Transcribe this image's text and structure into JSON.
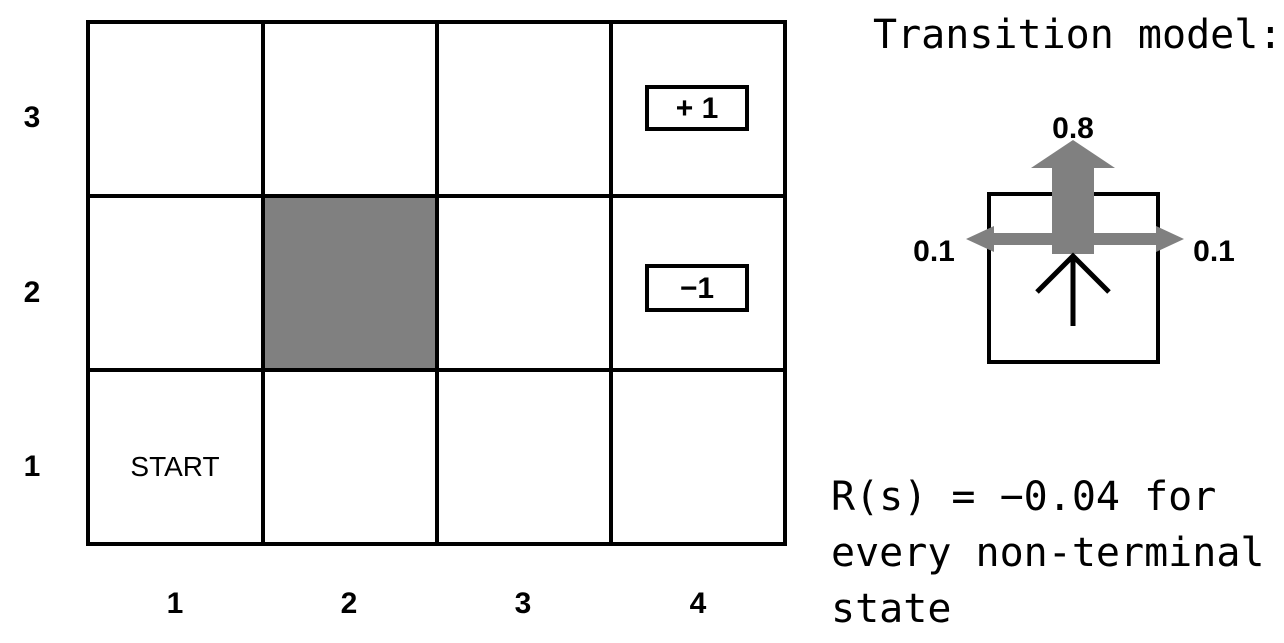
{
  "grid": {
    "columns": 4,
    "rows": 3,
    "col_labels": [
      "1",
      "2",
      "3",
      "4"
    ],
    "row_labels": [
      "3",
      "2",
      "1"
    ],
    "wall_cell": {
      "col": 2,
      "row": 2
    },
    "wall_color": "#808080",
    "start_cell": {
      "col": 1,
      "row": 1,
      "label": "START"
    },
    "terminals": [
      {
        "col": 4,
        "row": 3,
        "label": "+ 1"
      },
      {
        "col": 4,
        "row": 2,
        "label": "−1"
      }
    ]
  },
  "transition": {
    "title": "Transition model:",
    "forward_prob": "0.8",
    "left_prob": "0.1",
    "right_prob": "0.1",
    "arrow_color": "#808080",
    "intended-direction-icon": "up-arrow-icon"
  },
  "reward": {
    "line1": "R(s) = −0.04 for",
    "line2": "every non-terminal",
    "line3": "state"
  }
}
